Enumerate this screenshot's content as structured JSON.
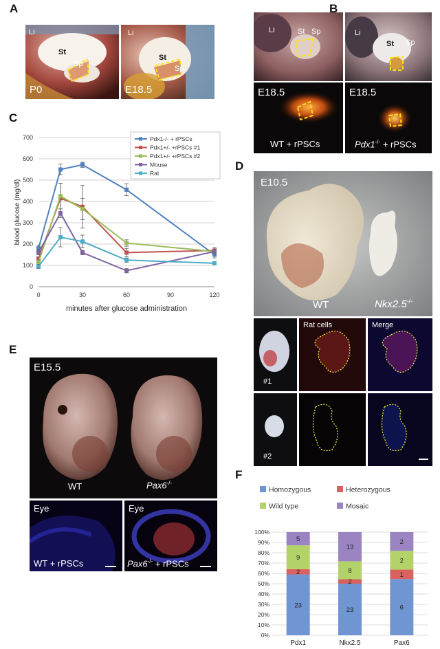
{
  "panels": {
    "A": {
      "letter": "A",
      "left": {
        "li": "Li",
        "st": "St",
        "sp": "Sp",
        "stage": "P0"
      },
      "right": {
        "li": "Li",
        "st": "St",
        "sp": "Sp",
        "stage": "E18.5"
      }
    },
    "B": {
      "letter": "B",
      "top_left": {
        "li": "Li",
        "st": "St",
        "sp": "Sp"
      },
      "top_right": {
        "li": "Li",
        "st": "St",
        "sp": "Sp"
      },
      "bottom_left": {
        "stage": "E18.5",
        "caption": "WT + rPSCs"
      },
      "bottom_right": {
        "stage": "E18.5",
        "caption_pre": "Pdx1",
        "caption_sup": "-/-",
        "caption_post": " + rPSCs"
      }
    },
    "C": {
      "letter": "C"
    },
    "D": {
      "letter": "D",
      "stage": "E10.5",
      "wt": "WT",
      "mut_pre": "Nkx2.5",
      "mut_sup": "-/-",
      "col_rat": "Rat cells",
      "col_merge": "Merge",
      "row1": "#1",
      "row2": "#2"
    },
    "E": {
      "letter": "E",
      "stage": "E15.5",
      "wt": "WT",
      "mut_pre": "Pax6",
      "mut_sup": "-/-",
      "eye_left": "Eye",
      "eye_right": "Eye",
      "cap_left": "WT + rPSCs",
      "cap_right_pre": "Pax6",
      "cap_right_sup": "-/-",
      "cap_right_post": " + rPSCs"
    },
    "F": {
      "letter": "F"
    }
  },
  "chart_data": [
    {
      "type": "line",
      "x": [
        0,
        15,
        30,
        60,
        120
      ],
      "xlabel": "minutes after glucose administration",
      "ylabel": "blood glucose (mg/dl)",
      "xticks": [
        0,
        30,
        60,
        90,
        120
      ],
      "yticks": [
        0,
        100,
        200,
        300,
        400,
        500,
        600,
        700
      ],
      "xlim": [
        0,
        120
      ],
      "ylim": [
        0,
        700
      ],
      "grid": "horizontal",
      "legend_position": "top-right",
      "series": [
        {
          "name": "Pdx1-/- + rPSCs",
          "color": "#4f81bd",
          "values": [
            180,
            550,
            572,
            455,
            150
          ],
          "err": [
            15,
            25,
            12,
            28,
            15
          ]
        },
        {
          "name": "Pdx1+/- +rPSCs #1",
          "color": "#c0504d",
          "values": [
            130,
            415,
            375,
            160,
            170
          ],
          "err": [
            10,
            70,
            100,
            20,
            15
          ]
        },
        {
          "name": "Pdx1+/- +rPSCs #2",
          "color": "#9bbb59",
          "values": [
            115,
            425,
            365,
            205,
            165
          ],
          "err": [
            10,
            60,
            50,
            15,
            10
          ]
        },
        {
          "name": "Mouse",
          "color": "#8064a2",
          "values": [
            160,
            345,
            160,
            75,
            165
          ],
          "err": [
            10,
            20,
            10,
            10,
            10
          ]
        },
        {
          "name": "Rat",
          "color": "#4bacc6",
          "values": [
            95,
            232,
            212,
            125,
            110
          ],
          "err": [
            10,
            45,
            30,
            10,
            8
          ]
        }
      ]
    },
    {
      "type": "bar",
      "stacked": "percent",
      "categories": [
        "Pdx1",
        "Nkx2.5",
        "Pax6"
      ],
      "yticks": [
        "0%",
        "10%",
        "20%",
        "30%",
        "40%",
        "50%",
        "60%",
        "70%",
        "80%",
        "90%",
        "100%"
      ],
      "legend_position": "top",
      "series": [
        {
          "name": "Homozygous",
          "color": "#6f96d3",
          "values": [
            23,
            23,
            6
          ]
        },
        {
          "name": "Heterozygous",
          "color": "#d9625e",
          "values": [
            2,
            2,
            1
          ]
        },
        {
          "name": "Wild type",
          "color": "#b3d36a",
          "values": [
            9,
            8,
            2
          ]
        },
        {
          "name": "Mosaic",
          "color": "#9a85c2",
          "values": [
            5,
            13,
            2
          ]
        }
      ]
    }
  ]
}
